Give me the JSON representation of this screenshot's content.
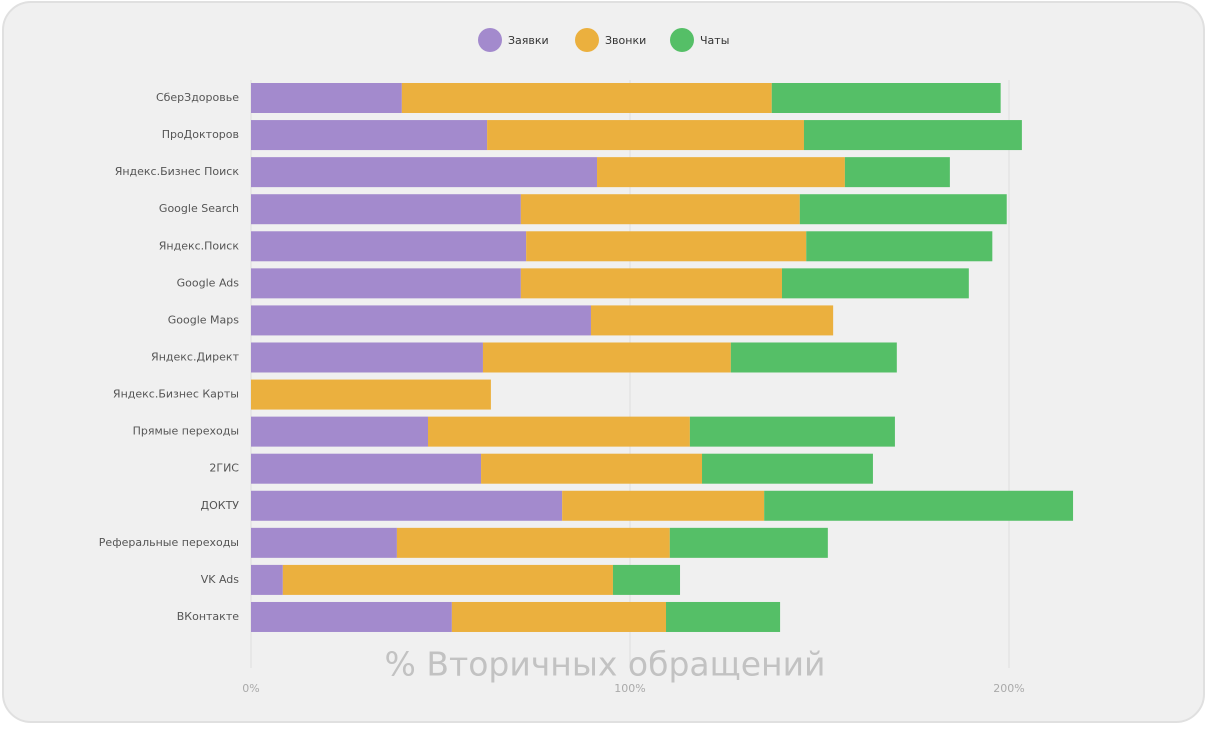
{
  "chart_data": {
    "type": "stacked_bar_horizontal",
    "x_label": "% Вторичных обращений",
    "categories": [
      "СберЗдоровье",
      "ПроДокторов",
      "Яндекс.Бизнес Поиск",
      "Google Search",
      "Яндекс.Поиск",
      "Google Ads",
      "Google Maps",
      "Яндекс.Директ",
      "Яндекс.Бизнес Карты",
      "Прямые переходы",
      "2ГИС",
      "ДОКТУ",
      "Реферальные переходы",
      "VK Ads",
      "ВКонтакте"
    ],
    "series": [
      {
        "name": "Заявки",
        "color": "#a38acd",
        "values": [
          39.8,
          62.3,
          91.3,
          71.2,
          72.6,
          71.2,
          89.7,
          61.2,
          0,
          46.7,
          60.7,
          82.1,
          38.5,
          8.4,
          53.0
        ]
      },
      {
        "name": "Звонки",
        "color": "#ebb03e",
        "values": [
          97.6,
          83.6,
          65.4,
          73.6,
          73.9,
          68.9,
          63.9,
          65.4,
          63.3,
          69.1,
          58.3,
          53.3,
          72.0,
          87.1,
          56.5
        ]
      },
      {
        "name": "Чаты",
        "color": "#55bf67",
        "values": [
          60.4,
          57.5,
          27.7,
          54.6,
          49.1,
          49.3,
          0,
          43.8,
          0,
          54.1,
          45.1,
          81.5,
          41.7,
          17.7,
          30.1
        ]
      }
    ],
    "xlim": [
      0,
      230
    ],
    "xticks": [
      {
        "value": 0,
        "label": "0%"
      },
      {
        "value": 100,
        "label": "100%"
      },
      {
        "value": 200,
        "label": "200%"
      }
    ],
    "grid": true,
    "legend": "top"
  }
}
